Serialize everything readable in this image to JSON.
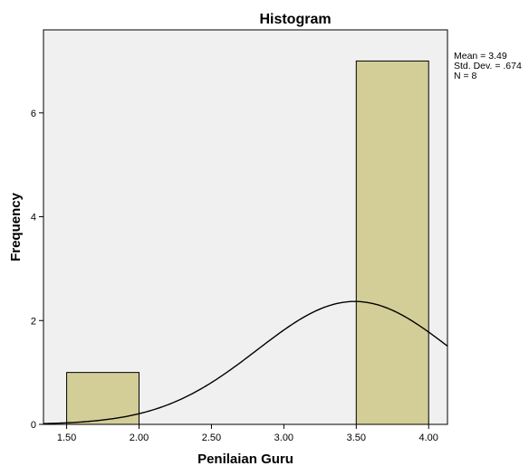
{
  "chart_data": {
    "type": "bar",
    "title": "Histogram",
    "xlabel": "Penilaian  Guru",
    "ylabel": "Frequency",
    "x_ticks": [
      "1.50",
      "2.00",
      "2.50",
      "3.00",
      "3.50",
      "4.00"
    ],
    "x_tick_values": [
      1.5,
      2.0,
      2.5,
      3.0,
      3.5,
      4.0
    ],
    "y_ticks": [
      "0",
      "2",
      "4",
      "6"
    ],
    "y_tick_values": [
      0,
      2,
      4,
      6
    ],
    "xlim": [
      1.34,
      4.13
    ],
    "ylim": [
      0,
      7.6
    ],
    "bins": [
      {
        "x0": 1.5,
        "x1": 2.0,
        "count": 1
      },
      {
        "x0": 2.0,
        "x1": 2.5,
        "count": 0
      },
      {
        "x0": 2.5,
        "x1": 3.0,
        "count": 0
      },
      {
        "x0": 3.0,
        "x1": 3.5,
        "count": 0
      },
      {
        "x0": 3.5,
        "x1": 4.0,
        "count": 7
      }
    ],
    "normal_curve": {
      "mean": 3.49,
      "sd": 0.674,
      "n": 8,
      "bin_width": 0.5
    },
    "stats": [
      "Mean = 3.49",
      "Std. Dev. = .674",
      "N = 8"
    ],
    "grid": false,
    "colors": {
      "bar_fill": "#d3ce98",
      "plot_background": "#f0f0f0",
      "curve": "#000000"
    }
  }
}
